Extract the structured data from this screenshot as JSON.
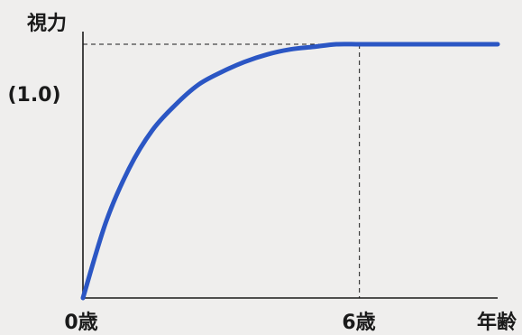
{
  "chart_data": {
    "type": "line",
    "ylabel": "視力",
    "xlabel": "年齢",
    "x_tick_labels": [
      "0歳",
      "6歳"
    ],
    "y_tick_label": "(1.0)",
    "x": [
      0,
      0.5,
      1,
      1.5,
      2,
      2.5,
      3,
      3.5,
      4,
      4.5,
      5,
      5.5,
      6,
      6.5,
      7,
      7.5,
      8,
      8.5,
      9
    ],
    "y": [
      0,
      0.3,
      0.51,
      0.66,
      0.76,
      0.84,
      0.89,
      0.93,
      0.96,
      0.98,
      0.99,
      1.0,
      1.0,
      1.0,
      1.0,
      1.0,
      1.0,
      1.0,
      1.0
    ],
    "xlim": [
      0,
      9
    ],
    "ylim": [
      0,
      1.05
    ],
    "reference": {
      "x": 6,
      "y": 1.0
    },
    "line_color": "#2b56c4",
    "grid": false
  }
}
